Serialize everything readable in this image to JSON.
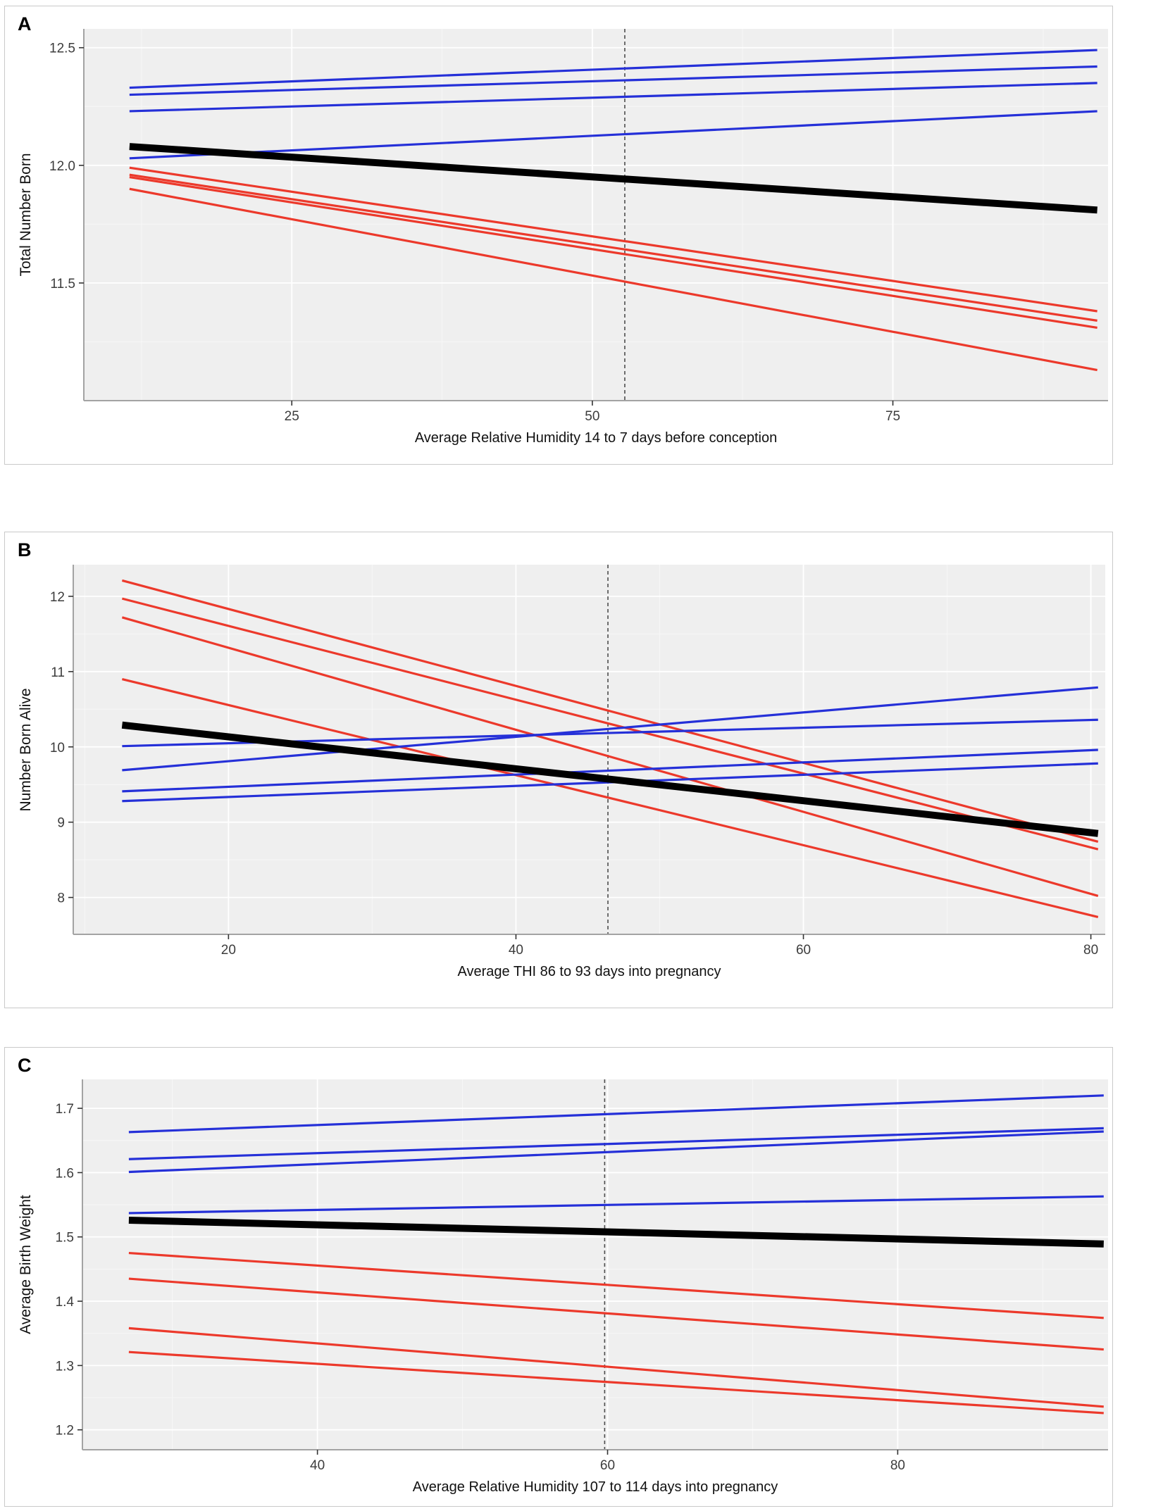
{
  "figure": {
    "background": "#ffffff",
    "panel_background": "#efefef",
    "grid_major_color": "#ffffff",
    "grid_minor_color": "#f7f7f7",
    "axis_line_color": "#a3a3a3",
    "tick_mark_color": "#333333",
    "tick_label_color": "#3c3c3c",
    "panel_border_color": "#c9c9c9",
    "palette": {
      "blue": "#2530d8",
      "red": "#ec392b",
      "black": "#000000",
      "dashed": "#4d4d4d"
    }
  },
  "chart_data": [
    {
      "panel_label": "A",
      "type": "line",
      "xlabel": "Average Relative Humidity 14 to 7 days before conception",
      "ylabel": "Total Number Born",
      "xlim": [
        7.7,
        92.9
      ],
      "ylim": [
        11.0,
        12.58
      ],
      "x_ticks": [
        {
          "v": 25,
          "label": "25"
        },
        {
          "v": 50,
          "label": "50"
        },
        {
          "v": 75,
          "label": "75"
        }
      ],
      "y_ticks": [
        {
          "v": 11.5,
          "label": "11.5"
        },
        {
          "v": 12.0,
          "label": "12.0"
        },
        {
          "v": 12.5,
          "label": "12.5"
        }
      ],
      "grid": true,
      "legend": "none",
      "reference_line_x": 52.7,
      "x_range": [
        11.5,
        92.0
      ],
      "series": [
        {
          "name": "red-line-1",
          "color": "red",
          "y": [
            11.99,
            11.38
          ]
        },
        {
          "name": "red-line-2",
          "color": "red",
          "y": [
            11.96,
            11.34
          ]
        },
        {
          "name": "red-line-3",
          "color": "red",
          "y": [
            11.95,
            11.31
          ]
        },
        {
          "name": "red-line-4",
          "color": "red",
          "y": [
            11.9,
            11.13
          ]
        },
        {
          "name": "blue-line-1",
          "color": "blue",
          "y": [
            12.33,
            12.49
          ]
        },
        {
          "name": "blue-line-2",
          "color": "blue",
          "y": [
            12.3,
            12.42
          ]
        },
        {
          "name": "blue-line-3",
          "color": "blue",
          "y": [
            12.23,
            12.35
          ]
        },
        {
          "name": "blue-line-4",
          "color": "blue",
          "y": [
            12.03,
            12.23
          ]
        },
        {
          "name": "mean-line",
          "color": "black",
          "y": [
            12.08,
            11.81
          ]
        }
      ]
    },
    {
      "panel_label": "B",
      "type": "line",
      "xlabel": "Average THI 86 to 93 days into pregnancy",
      "ylabel": "Number Born Alive",
      "xlim": [
        9.2,
        81.0
      ],
      "ylim": [
        7.51,
        12.42
      ],
      "x_ticks": [
        {
          "v": 20,
          "label": "20"
        },
        {
          "v": 40,
          "label": "40"
        },
        {
          "v": 60,
          "label": "60"
        },
        {
          "v": 80,
          "label": "80"
        }
      ],
      "y_ticks": [
        {
          "v": 8,
          "label": "8"
        },
        {
          "v": 9,
          "label": "9"
        },
        {
          "v": 10,
          "label": "10"
        },
        {
          "v": 11,
          "label": "11"
        },
        {
          "v": 12,
          "label": "12"
        }
      ],
      "grid": true,
      "legend": "none",
      "reference_line_x": 46.4,
      "x_range": [
        12.6,
        80.5
      ],
      "series": [
        {
          "name": "red-line-1",
          "color": "red",
          "y": [
            12.21,
            8.74
          ]
        },
        {
          "name": "red-line-2",
          "color": "red",
          "y": [
            11.97,
            8.64
          ]
        },
        {
          "name": "red-line-3",
          "color": "red",
          "y": [
            11.72,
            8.02
          ]
        },
        {
          "name": "red-line-4",
          "color": "red",
          "y": [
            10.9,
            7.74
          ]
        },
        {
          "name": "blue-line-1",
          "color": "blue",
          "y": [
            10.01,
            10.36
          ]
        },
        {
          "name": "blue-line-2",
          "color": "blue",
          "y": [
            9.69,
            10.79
          ]
        },
        {
          "name": "blue-line-3",
          "color": "blue",
          "y": [
            9.41,
            9.96
          ]
        },
        {
          "name": "blue-line-4",
          "color": "blue",
          "y": [
            9.28,
            9.78
          ]
        },
        {
          "name": "mean-line",
          "color": "black",
          "y": [
            10.29,
            8.85
          ]
        }
      ]
    },
    {
      "panel_label": "C",
      "type": "line",
      "xlabel": "Average Relative Humidity 107 to 114 days into pregnancy",
      "ylabel": "Average Birth Weight",
      "xlim": [
        23.8,
        94.5
      ],
      "ylim": [
        1.169,
        1.745
      ],
      "x_ticks": [
        {
          "v": 40,
          "label": "40"
        },
        {
          "v": 60,
          "label": "60"
        },
        {
          "v": 80,
          "label": "80"
        }
      ],
      "y_ticks": [
        {
          "v": 1.2,
          "label": "1.2"
        },
        {
          "v": 1.3,
          "label": "1.3"
        },
        {
          "v": 1.4,
          "label": "1.4"
        },
        {
          "v": 1.5,
          "label": "1.5"
        },
        {
          "v": 1.6,
          "label": "1.6"
        },
        {
          "v": 1.7,
          "label": "1.7"
        }
      ],
      "grid": true,
      "legend": "none",
      "reference_line_x": 59.8,
      "x_range": [
        27.0,
        94.2
      ],
      "series": [
        {
          "name": "red-line-1",
          "color": "red",
          "y": [
            1.475,
            1.374
          ]
        },
        {
          "name": "red-line-2",
          "color": "red",
          "y": [
            1.435,
            1.325
          ]
        },
        {
          "name": "red-line-3",
          "color": "red",
          "y": [
            1.358,
            1.236
          ]
        },
        {
          "name": "red-line-4",
          "color": "red",
          "y": [
            1.321,
            1.226
          ]
        },
        {
          "name": "blue-line-1",
          "color": "blue",
          "y": [
            1.663,
            1.72
          ]
        },
        {
          "name": "blue-line-2",
          "color": "blue",
          "y": [
            1.621,
            1.669
          ]
        },
        {
          "name": "blue-line-3",
          "color": "blue",
          "y": [
            1.601,
            1.664
          ]
        },
        {
          "name": "blue-line-4",
          "color": "blue",
          "y": [
            1.537,
            1.563
          ]
        },
        {
          "name": "mean-line",
          "color": "black",
          "y": [
            1.526,
            1.489
          ]
        }
      ]
    }
  ]
}
